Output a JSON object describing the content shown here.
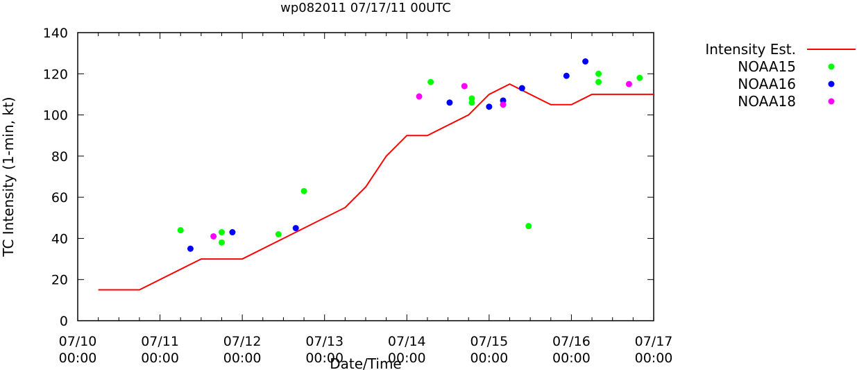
{
  "chart_data": {
    "type": "scatter",
    "title": "wp082011 07/17/11 00UTC",
    "xlabel": "Date/Time",
    "ylabel": "TC Intensity (1-min, kt)",
    "ylim": [
      0,
      140
    ],
    "yticks": [
      0,
      20,
      40,
      60,
      80,
      100,
      120,
      140
    ],
    "xlim_days": [
      0,
      7
    ],
    "xticks": [
      {
        "day": 0,
        "date": "07/10",
        "time": "00:00"
      },
      {
        "day": 1,
        "date": "07/11",
        "time": "00:00"
      },
      {
        "day": 2,
        "date": "07/12",
        "time": "00:00"
      },
      {
        "day": 3,
        "date": "07/13",
        "time": "00:00"
      },
      {
        "day": 4,
        "date": "07/14",
        "time": "00:00"
      },
      {
        "day": 5,
        "date": "07/15",
        "time": "00:00"
      },
      {
        "day": 6,
        "date": "07/16",
        "time": "00:00"
      },
      {
        "day": 7,
        "date": "07/17",
        "time": "00:00"
      }
    ],
    "legend_position": "outside-right",
    "series": [
      {
        "name": "Intensity Est.",
        "kind": "line",
        "color": "#ff0000",
        "x": [
          0.25,
          0.75,
          1.5,
          2.0,
          3.25,
          3.5,
          3.75,
          4.0,
          4.25,
          4.75,
          5.0,
          5.25,
          5.75,
          6.0,
          6.25,
          7.0
        ],
        "y": [
          15,
          15,
          30,
          30,
          55,
          65,
          80,
          90,
          90,
          100,
          110,
          115,
          105,
          105,
          110,
          110
        ]
      },
      {
        "name": "NOAA15",
        "kind": "points",
        "color": "#00ff00",
        "x": [
          1.25,
          1.75,
          1.75,
          2.44,
          2.75,
          4.29,
          4.79,
          4.79,
          5.48,
          6.33,
          6.33,
          6.83
        ],
        "y": [
          44,
          43,
          38,
          42,
          63,
          116,
          108,
          106,
          46,
          120,
          116,
          118
        ]
      },
      {
        "name": "NOAA16",
        "kind": "points",
        "color": "#0000ff",
        "x": [
          1.37,
          1.88,
          2.65,
          4.52,
          5.0,
          5.17,
          5.4,
          5.94,
          6.17
        ],
        "y": [
          35,
          43,
          45,
          106,
          104,
          107,
          113,
          119,
          126
        ]
      },
      {
        "name": "NOAA18",
        "kind": "points",
        "color": "#ff00ff",
        "x": [
          1.65,
          4.15,
          4.7,
          5.17,
          6.7
        ],
        "y": [
          41,
          109,
          114,
          105,
          115
        ]
      }
    ]
  }
}
